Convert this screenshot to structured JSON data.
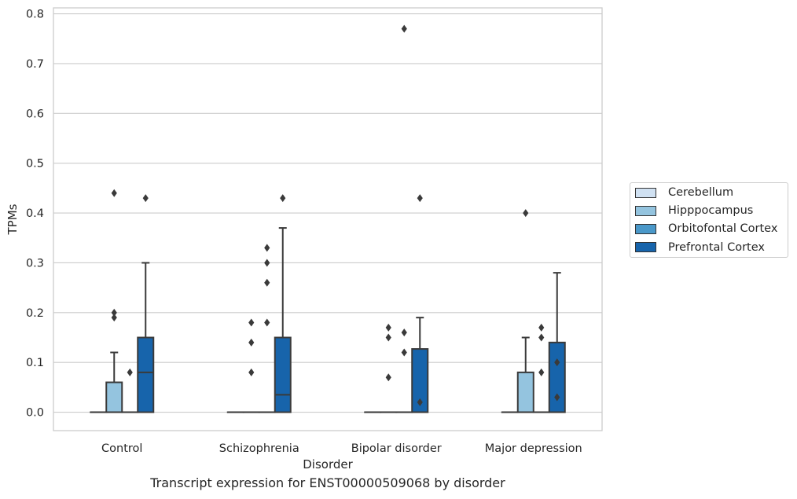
{
  "chart_data": {
    "type": "box",
    "xlabel": "Disorder",
    "ylabel": "TPMs",
    "caption": "Transcript expression for ENST00000509068 by disorder",
    "categories": [
      "Control",
      "Schizophrenia",
      "Bipolar disorder",
      "Major depression"
    ],
    "ylim": [
      -0.037,
      0.812
    ],
    "yticks": [
      0.0,
      0.1,
      0.2,
      0.3,
      0.4,
      0.5,
      0.6,
      0.7,
      0.8
    ],
    "ytick_labels": [
      "0.0",
      "0.1",
      "0.2",
      "0.3",
      "0.4",
      "0.5",
      "0.6",
      "0.7",
      "0.8"
    ],
    "grid": "horizontal",
    "legend_position": "right",
    "series": [
      {
        "name": "Cerebellum",
        "color": "#d0e1f2",
        "boxes": [
          {
            "q1": 0,
            "median": 0,
            "q3": 0,
            "whisker_low": 0,
            "whisker_high": 0,
            "outliers": []
          },
          {
            "q1": 0,
            "median": 0,
            "q3": 0,
            "whisker_low": 0,
            "whisker_high": 0,
            "outliers": []
          },
          {
            "q1": 0,
            "median": 0,
            "q3": 0,
            "whisker_low": 0,
            "whisker_high": 0,
            "outliers": []
          },
          {
            "q1": 0,
            "median": 0,
            "q3": 0,
            "whisker_low": 0,
            "whisker_high": 0,
            "outliers": []
          }
        ]
      },
      {
        "name": "Hipppocampus",
        "color": "#94c4df",
        "boxes": [
          {
            "q1": 0,
            "median": 0,
            "q3": 0.06,
            "whisker_low": 0,
            "whisker_high": 0.12,
            "outliers": [
              0.19,
              0.2,
              0.44
            ]
          },
          {
            "q1": 0,
            "median": 0,
            "q3": 0,
            "whisker_low": 0,
            "whisker_high": 0,
            "outliers": [
              0.08,
              0.14,
              0.18
            ]
          },
          {
            "q1": 0,
            "median": 0,
            "q3": 0,
            "whisker_low": 0,
            "whisker_high": 0,
            "outliers": [
              0.07,
              0.15,
              0.17
            ]
          },
          {
            "q1": 0,
            "median": 0,
            "q3": 0.08,
            "whisker_low": 0,
            "whisker_high": 0.15,
            "outliers": [
              0.4
            ]
          }
        ]
      },
      {
        "name": "Orbitofontal Cortex",
        "color": "#4a98c9",
        "boxes": [
          {
            "q1": 0,
            "median": 0,
            "q3": 0,
            "whisker_low": 0,
            "whisker_high": 0,
            "outliers": [
              0.08
            ]
          },
          {
            "q1": 0,
            "median": 0,
            "q3": 0,
            "whisker_low": 0,
            "whisker_high": 0,
            "outliers": [
              0.18,
              0.26,
              0.3,
              0.33
            ]
          },
          {
            "q1": 0,
            "median": 0,
            "q3": 0,
            "whisker_low": 0,
            "whisker_high": 0,
            "outliers": [
              0.12,
              0.16,
              0.77
            ]
          },
          {
            "q1": 0,
            "median": 0,
            "q3": 0,
            "whisker_low": 0,
            "whisker_high": 0,
            "outliers": [
              0.08,
              0.15,
              0.17
            ]
          }
        ]
      },
      {
        "name": "Prefrontal Cortex",
        "color": "#1764ab",
        "boxes": [
          {
            "q1": 0,
            "median": 0.08,
            "q3": 0.15,
            "whisker_low": 0,
            "whisker_high": 0.3,
            "outliers": [
              0.43
            ]
          },
          {
            "q1": 0,
            "median": 0.035,
            "q3": 0.15,
            "whisker_low": 0,
            "whisker_high": 0.37,
            "outliers": [
              0.43
            ]
          },
          {
            "q1": 0,
            "median": 0,
            "q3": 0.127,
            "whisker_low": 0,
            "whisker_high": 0.19,
            "outliers": [
              0.02,
              0.43
            ]
          },
          {
            "q1": 0,
            "median": 0,
            "q3": 0.14,
            "whisker_low": 0,
            "whisker_high": 0.28,
            "outliers": [
              0.03,
              0.1
            ]
          }
        ]
      }
    ]
  }
}
